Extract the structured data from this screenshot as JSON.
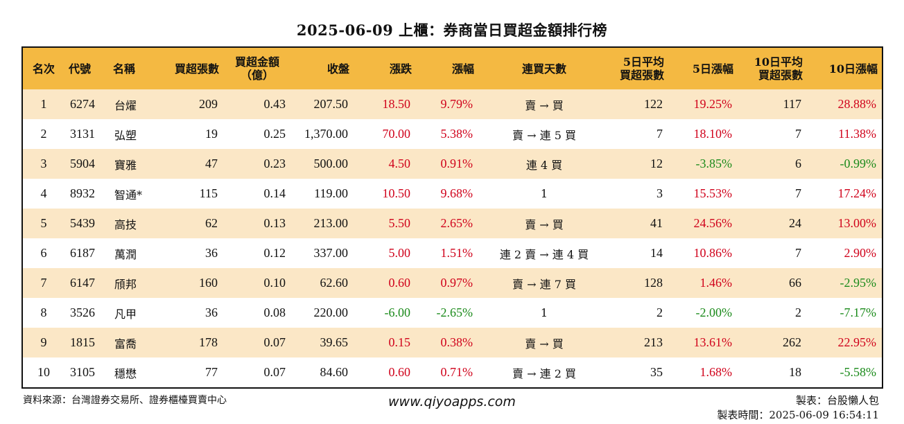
{
  "title": "2025-06-09 上櫃：券商當日買超金額排行榜",
  "headers": {
    "rank": "名次",
    "code": "代號",
    "name": "名稱",
    "net_buy_lots": "買超張數",
    "net_buy_amount_l1": "買超金額",
    "net_buy_amount_l2": "（億）",
    "close": "收盤",
    "change": "漲跌",
    "change_pct": "漲幅",
    "streak": "連買天數",
    "avg5_l1": "5日平均",
    "avg5_l2": "買超張數",
    "pct5": "5日漲幅",
    "avg10_l1": "10日平均",
    "avg10_l2": "買超張數",
    "pct10": "10日漲幅"
  },
  "rows": [
    {
      "rank": "1",
      "code": "6274",
      "name": "台燿",
      "lots": "209",
      "amount": "0.43",
      "close": "207.50",
      "change": "18.50",
      "change_dir": "up",
      "pct": "9.79%",
      "pct_dir": "up",
      "streak": "賣 → 買",
      "avg5": "122",
      "pct5": "19.25%",
      "pct5_dir": "up",
      "avg10": "117",
      "pct10": "28.88%",
      "pct10_dir": "up"
    },
    {
      "rank": "2",
      "code": "3131",
      "name": "弘塑",
      "lots": "19",
      "amount": "0.25",
      "close": "1,370.00",
      "change": "70.00",
      "change_dir": "up",
      "pct": "5.38%",
      "pct_dir": "up",
      "streak": "賣 → 連 5 買",
      "avg5": "7",
      "pct5": "18.10%",
      "pct5_dir": "up",
      "avg10": "7",
      "pct10": "11.38%",
      "pct10_dir": "up"
    },
    {
      "rank": "3",
      "code": "5904",
      "name": "寶雅",
      "lots": "47",
      "amount": "0.23",
      "close": "500.00",
      "change": "4.50",
      "change_dir": "up",
      "pct": "0.91%",
      "pct_dir": "up",
      "streak": "連 4 買",
      "avg5": "12",
      "pct5": "-3.85%",
      "pct5_dir": "down",
      "avg10": "6",
      "pct10": "-0.99%",
      "pct10_dir": "down"
    },
    {
      "rank": "4",
      "code": "8932",
      "name": "智通*",
      "lots": "115",
      "amount": "0.14",
      "close": "119.00",
      "change": "10.50",
      "change_dir": "up",
      "pct": "9.68%",
      "pct_dir": "up",
      "streak": "1",
      "avg5": "3",
      "pct5": "15.53%",
      "pct5_dir": "up",
      "avg10": "7",
      "pct10": "17.24%",
      "pct10_dir": "up"
    },
    {
      "rank": "5",
      "code": "5439",
      "name": "高技",
      "lots": "62",
      "amount": "0.13",
      "close": "213.00",
      "change": "5.50",
      "change_dir": "up",
      "pct": "2.65%",
      "pct_dir": "up",
      "streak": "賣 → 買",
      "avg5": "41",
      "pct5": "24.56%",
      "pct5_dir": "up",
      "avg10": "24",
      "pct10": "13.00%",
      "pct10_dir": "up"
    },
    {
      "rank": "6",
      "code": "6187",
      "name": "萬潤",
      "lots": "36",
      "amount": "0.12",
      "close": "337.00",
      "change": "5.00",
      "change_dir": "up",
      "pct": "1.51%",
      "pct_dir": "up",
      "streak": "連 2 賣 → 連 4 買",
      "avg5": "14",
      "pct5": "10.86%",
      "pct5_dir": "up",
      "avg10": "7",
      "pct10": "2.90%",
      "pct10_dir": "up"
    },
    {
      "rank": "7",
      "code": "6147",
      "name": "頎邦",
      "lots": "160",
      "amount": "0.10",
      "close": "62.60",
      "change": "0.60",
      "change_dir": "up",
      "pct": "0.97%",
      "pct_dir": "up",
      "streak": "賣 → 連 7 買",
      "avg5": "128",
      "pct5": "1.46%",
      "pct5_dir": "up",
      "avg10": "66",
      "pct10": "-2.95%",
      "pct10_dir": "down"
    },
    {
      "rank": "8",
      "code": "3526",
      "name": "凡甲",
      "lots": "36",
      "amount": "0.08",
      "close": "220.00",
      "change": "-6.00",
      "change_dir": "down",
      "pct": "-2.65%",
      "pct_dir": "down",
      "streak": "1",
      "avg5": "2",
      "pct5": "-2.00%",
      "pct5_dir": "down",
      "avg10": "2",
      "pct10": "-7.17%",
      "pct10_dir": "down"
    },
    {
      "rank": "9",
      "code": "1815",
      "name": "富喬",
      "lots": "178",
      "amount": "0.07",
      "close": "39.65",
      "change": "0.15",
      "change_dir": "up",
      "pct": "0.38%",
      "pct_dir": "up",
      "streak": "賣 → 買",
      "avg5": "213",
      "pct5": "13.61%",
      "pct5_dir": "up",
      "avg10": "262",
      "pct10": "22.95%",
      "pct10_dir": "up"
    },
    {
      "rank": "10",
      "code": "3105",
      "name": "穩懋",
      "lots": "77",
      "amount": "0.07",
      "close": "84.60",
      "change": "0.60",
      "change_dir": "up",
      "pct": "0.71%",
      "pct_dir": "up",
      "streak": "賣 → 連 2 買",
      "avg5": "35",
      "pct5": "1.68%",
      "pct5_dir": "up",
      "avg10": "18",
      "pct10": "-5.58%",
      "pct10_dir": "down"
    }
  ],
  "colors": {
    "header_bg": "#f4b942",
    "stripe_bg": "#fbe7c6",
    "up": "#d0021b",
    "down": "#1a8a1a"
  },
  "footer": {
    "source": "資料來源：台灣證券交易所、證券櫃檯買賣中心",
    "website": "www.qiyoapps.com",
    "maker": "製表：台股懶人包",
    "made_time": "製表時間：2025-06-09 16:54:11"
  }
}
